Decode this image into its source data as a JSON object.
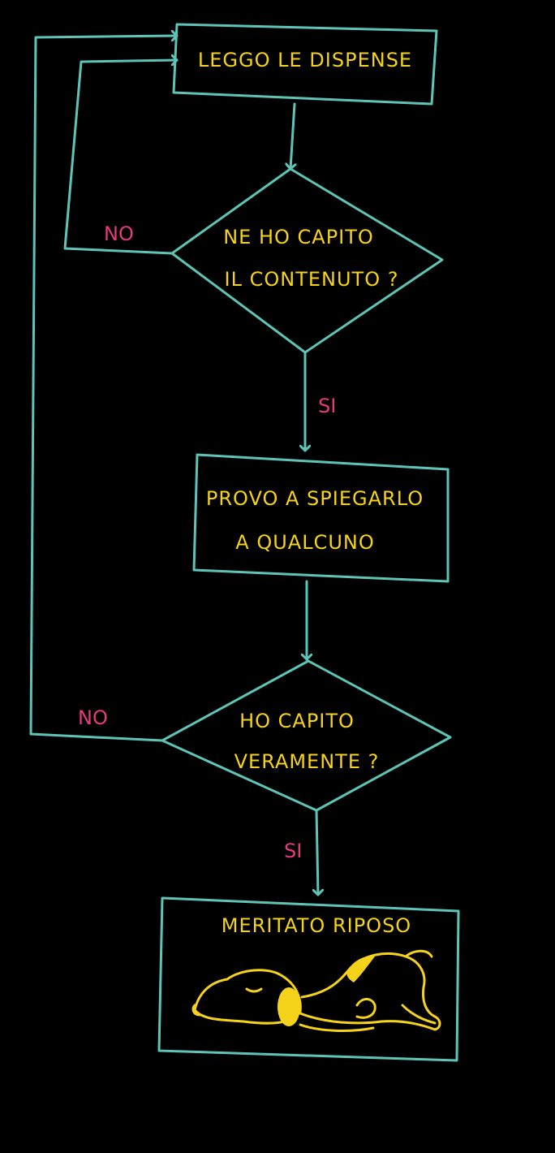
{
  "colors": {
    "background": "#000000",
    "lines": "#5fc4b8",
    "node_text": "#f5d31a",
    "edge_label": "#e6397f"
  },
  "nodes": {
    "read_notes": "LEGGO LE DISPENSE",
    "understood_content": [
      "NE HO CAPITO",
      "IL CONTENUTO ?"
    ],
    "explain": [
      "PROVO A SPIEGARLO",
      "A QUALCUNO"
    ],
    "really_understood": [
      "HO CAPITO",
      "VERAMENTE ?"
    ],
    "rest": "MERITATO RIPOSO"
  },
  "edges": {
    "no_1": "NO",
    "yes_1": "SI",
    "no_2": "NO",
    "yes_2": "SI"
  },
  "icons": {
    "rest_illustration": "sleeping-dog-icon"
  }
}
